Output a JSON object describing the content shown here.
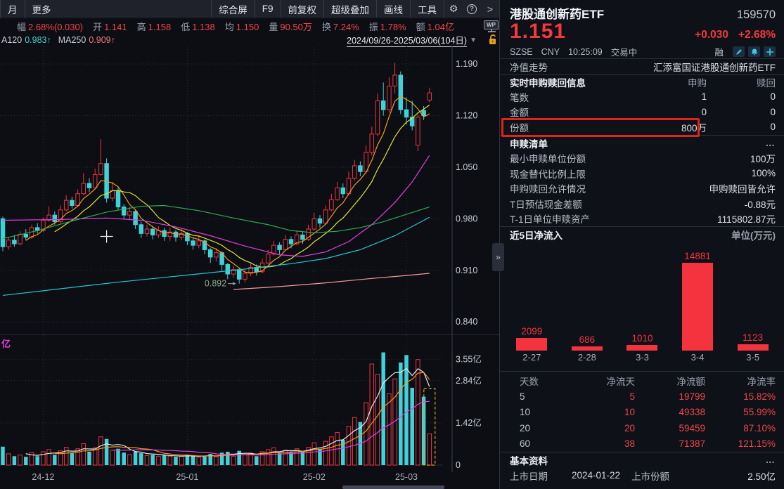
{
  "toolbar": {
    "tabs": [
      "月",
      "更多"
    ],
    "buttons": [
      "综合屏",
      "F9",
      "前复权",
      "超级叠加",
      "画线",
      "工具"
    ],
    "gear_icon": "⚙",
    "help_icon": "?",
    "chevron_icon": ">"
  },
  "info_row": {
    "items": [
      {
        "label": "幅",
        "value": "2.68%(0.030)"
      },
      {
        "label": "开",
        "value": "1.141"
      },
      {
        "label": "高",
        "value": "1.158"
      },
      {
        "label": "低",
        "value": "1.138"
      },
      {
        "label": "均",
        "value": "1.150"
      },
      {
        "label": "量",
        "value": "90.50万"
      },
      {
        "label": "换",
        "value": "7.24%"
      },
      {
        "label": "振",
        "value": "1.78%"
      },
      {
        "label": "额",
        "value": "1.04亿"
      }
    ],
    "wp_badge": "WP"
  },
  "ma_row": {
    "ma120_label": "A120",
    "ma120_value": "0.983↑",
    "ma250_label": "MA250",
    "ma250_value": "0.909↑",
    "date_range": "2024/09/26-2025/03/06(104日)",
    "dropdown": "▼"
  },
  "quote": {
    "name": "港股通创新药ETF",
    "code": "159570",
    "price": "1.151",
    "change": "+0.030",
    "change_pct": "+2.68%",
    "exchange": "SZSE",
    "currency": "CNY",
    "time": "10:25:09",
    "status": "交易中",
    "margin_tag": "融"
  },
  "nav_row": {
    "label": "净值走势",
    "value": "汇添富国证港股通创新药ETF"
  },
  "realtime": {
    "title": "实时申购赎回信息",
    "col_buy": "申购",
    "col_sell": "赎回",
    "rows": [
      {
        "label": "笔数",
        "buy": "1",
        "sell": "0"
      },
      {
        "label": "金额",
        "buy": "0",
        "sell": "0"
      },
      {
        "label": "份额",
        "buy": "800万",
        "sell": "0"
      }
    ]
  },
  "redemption": {
    "title": "申赎清单",
    "more": "…",
    "rows": [
      {
        "label": "最小申赎单位份额",
        "value": "100万"
      },
      {
        "label": "现金替代比例上限",
        "value": "100%"
      },
      {
        "label": "申购赎回允许情况",
        "value": "申购赎回皆允许"
      },
      {
        "label": "T日预估现金差额",
        "value": "-0.88元"
      },
      {
        "label": "T-1日单位申赎资产",
        "value": "1115802.87元"
      }
    ]
  },
  "flow_header": {
    "title": "近5日净流入",
    "unit": "单位(万元)"
  },
  "flow_table": {
    "headers": [
      "天数",
      "净流天",
      "净流额",
      "净流率"
    ],
    "rows": [
      [
        "5",
        "5",
        "19799",
        "15.82%"
      ],
      [
        "10",
        "10",
        "49338",
        "55.99%"
      ],
      [
        "20",
        "20",
        "59459",
        "87.10%"
      ],
      [
        "60",
        "38",
        "71387",
        "121.15%"
      ]
    ]
  },
  "basic": {
    "title": "基本资料",
    "more": "…",
    "label_date": "上市日期",
    "value_date": "2024-01-22",
    "label_shares": "上市份额",
    "value_shares": "2.50亿"
  },
  "expander": "»",
  "vol_pane_partial_label": "亿",
  "colors": {
    "up_red": "#f0353f",
    "down_cyan": "#3fd2d8",
    "accent_red": "#f0454a",
    "bar_red": "#f5333f",
    "highlight_box": "#e02418",
    "dashed_highlight": "#d9a31f",
    "ma5": "#f59a23",
    "ma10": "#e3e339",
    "ma20": "#e040e0",
    "ma60": "#2faa52",
    "ma120": "#27c5cf",
    "ma250": "#f59a9a",
    "vol_ma5": "#e8e8e8",
    "vol_ma10": "#f59a23",
    "vol_ma20": "#e040e0",
    "grid": "#2a303c",
    "axis_text": "#c7ccd6"
  },
  "chart_data": [
    {
      "type": "candlestick",
      "ylim": [
        0.823,
        1.214
      ],
      "y_ticks": [
        1.19,
        1.12,
        1.05,
        0.98,
        0.91,
        0.84
      ],
      "x_labels": [
        {
          "text": "24-12",
          "index": 7
        },
        {
          "text": "25-01",
          "index": 32
        },
        {
          "text": "25-02",
          "index": 54
        },
        {
          "text": "25-03",
          "index": 70
        }
      ],
      "low_marker": {
        "index": 41,
        "price": 0.892,
        "text": "0.892"
      },
      "crosshair": {
        "index": 18,
        "price": 0.956
      },
      "candles": [
        [
          0.98,
          0.983,
          0.936,
          0.942
        ],
        [
          0.942,
          0.955,
          0.938,
          0.951
        ],
        [
          0.951,
          0.958,
          0.942,
          0.946
        ],
        [
          0.946,
          0.963,
          0.944,
          0.959
        ],
        [
          0.959,
          0.966,
          0.951,
          0.955
        ],
        [
          0.955,
          0.972,
          0.953,
          0.968
        ],
        [
          0.968,
          0.974,
          0.96,
          0.964
        ],
        [
          0.964,
          0.982,
          0.962,
          0.978
        ],
        [
          0.978,
          0.997,
          0.976,
          0.985
        ],
        [
          0.985,
          0.99,
          0.972,
          0.976
        ],
        [
          0.976,
          0.998,
          0.974,
          0.992
        ],
        [
          0.992,
          1.012,
          0.99,
          1.005
        ],
        [
          1.005,
          1.01,
          0.994,
          0.998
        ],
        [
          0.998,
          1.02,
          0.996,
          1.014
        ],
        [
          1.014,
          1.042,
          1.012,
          1.028
        ],
        [
          1.028,
          1.035,
          1.016,
          1.022
        ],
        [
          1.022,
          1.048,
          1.02,
          1.04
        ],
        [
          1.04,
          1.088,
          1.038,
          1.055
        ],
        [
          1.055,
          1.062,
          1.002,
          1.008
        ],
        [
          1.008,
          1.03,
          1.004,
          1.018
        ],
        [
          1.018,
          1.022,
          0.992,
          0.996
        ],
        [
          0.996,
          1.0,
          0.98,
          0.985
        ],
        [
          0.985,
          0.996,
          0.978,
          0.99
        ],
        [
          0.99,
          0.992,
          0.966,
          0.972
        ],
        [
          0.972,
          0.976,
          0.954,
          0.96
        ],
        [
          0.96,
          0.972,
          0.956,
          0.966
        ],
        [
          0.966,
          0.97,
          0.952,
          0.958
        ],
        [
          0.958,
          0.97,
          0.954,
          0.964
        ],
        [
          0.964,
          0.968,
          0.95,
          0.956
        ],
        [
          0.956,
          0.968,
          0.95,
          0.962
        ],
        [
          0.962,
          0.965,
          0.949,
          0.955
        ],
        [
          0.955,
          0.966,
          0.951,
          0.96
        ],
        [
          0.96,
          0.962,
          0.944,
          0.95
        ],
        [
          0.95,
          0.954,
          0.938,
          0.944
        ],
        [
          0.944,
          0.956,
          0.94,
          0.95
        ],
        [
          0.95,
          0.952,
          0.932,
          0.938
        ],
        [
          0.938,
          0.94,
          0.92,
          0.928
        ],
        [
          0.928,
          0.94,
          0.922,
          0.934
        ],
        [
          0.934,
          0.936,
          0.91,
          0.918
        ],
        [
          0.918,
          0.92,
          0.898,
          0.905
        ],
        [
          0.905,
          0.916,
          0.9,
          0.911
        ],
        [
          0.911,
          0.913,
          0.892,
          0.898
        ],
        [
          0.898,
          0.912,
          0.894,
          0.906
        ],
        [
          0.906,
          0.92,
          0.902,
          0.914
        ],
        [
          0.914,
          0.918,
          0.903,
          0.908
        ],
        [
          0.908,
          0.926,
          0.906,
          0.92
        ],
        [
          0.92,
          0.938,
          0.918,
          0.932
        ],
        [
          0.932,
          0.95,
          0.93,
          0.944
        ],
        [
          0.944,
          0.948,
          0.932,
          0.938
        ],
        [
          0.938,
          0.958,
          0.936,
          0.952
        ],
        [
          0.952,
          0.956,
          0.94,
          0.946
        ],
        [
          0.946,
          0.964,
          0.944,
          0.958
        ],
        [
          0.958,
          0.962,
          0.946,
          0.952
        ],
        [
          0.952,
          0.972,
          0.95,
          0.966
        ],
        [
          0.966,
          0.988,
          0.964,
          0.98
        ],
        [
          0.98,
          0.985,
          0.968,
          0.974
        ],
        [
          0.974,
          0.998,
          0.972,
          0.992
        ],
        [
          0.992,
          1.014,
          0.99,
          1.006
        ],
        [
          1.006,
          1.03,
          1.004,
          1.022
        ],
        [
          1.022,
          1.028,
          1.008,
          1.014
        ],
        [
          1.014,
          1.044,
          1.012,
          1.035
        ],
        [
          1.035,
          1.06,
          1.032,
          1.052
        ],
        [
          1.052,
          1.058,
          1.038,
          1.044
        ],
        [
          1.044,
          1.08,
          1.042,
          1.07
        ],
        [
          1.07,
          1.105,
          1.066,
          1.095
        ],
        [
          1.095,
          1.15,
          1.092,
          1.14
        ],
        [
          1.14,
          1.165,
          1.12,
          1.128
        ],
        [
          1.128,
          1.172,
          1.124,
          1.16
        ],
        [
          1.16,
          1.192,
          1.15,
          1.175
        ],
        [
          1.175,
          1.18,
          1.122,
          1.128
        ],
        [
          1.128,
          1.145,
          1.108,
          1.118
        ],
        [
          1.118,
          1.14,
          1.1,
          1.106
        ],
        [
          1.08,
          1.122,
          1.072,
          1.118
        ],
        [
          1.127,
          1.133,
          1.114,
          1.12
        ],
        [
          1.141,
          1.158,
          1.138,
          1.151
        ]
      ],
      "overlays": [
        {
          "name": "MA5",
          "color_key": "ma5",
          "compute": 5
        },
        {
          "name": "MA10",
          "color_key": "ma10",
          "compute": 10
        },
        {
          "name": "MA20",
          "color_key": "ma20",
          "points": [
            [
              0,
              0.978
            ],
            [
              10,
              0.979
            ],
            [
              18,
              0.981
            ],
            [
              24,
              0.978
            ],
            [
              30,
              0.969
            ],
            [
              36,
              0.957
            ],
            [
              42,
              0.943
            ],
            [
              48,
              0.931
            ],
            [
              52,
              0.929
            ],
            [
              56,
              0.935
            ],
            [
              60,
              0.949
            ],
            [
              64,
              0.972
            ],
            [
              68,
              1.002
            ],
            [
              71,
              1.03
            ],
            [
              74,
              1.066
            ]
          ]
        },
        {
          "name": "MA60",
          "color_key": "ma60",
          "points": [
            [
              0,
              0.953
            ],
            [
              6,
              0.964
            ],
            [
              12,
              0.977
            ],
            [
              18,
              0.989
            ],
            [
              24,
              0.997
            ],
            [
              28,
              0.998
            ],
            [
              34,
              0.991
            ],
            [
              40,
              0.981
            ],
            [
              46,
              0.972
            ],
            [
              50,
              0.964
            ],
            [
              54,
              0.961
            ],
            [
              58,
              0.963
            ],
            [
              62,
              0.968
            ],
            [
              66,
              0.976
            ],
            [
              70,
              0.986
            ],
            [
              74,
              0.996
            ]
          ]
        },
        {
          "name": "MA120",
          "color_key": "ma120",
          "points": [
            [
              0,
              0.876
            ],
            [
              10,
              0.885
            ],
            [
              20,
              0.894
            ],
            [
              30,
              0.902
            ],
            [
              40,
              0.91
            ],
            [
              50,
              0.919
            ],
            [
              56,
              0.926
            ],
            [
              62,
              0.938
            ],
            [
              68,
              0.957
            ],
            [
              74,
              0.982
            ]
          ]
        },
        {
          "name": "MA250",
          "color_key": "ma250",
          "points": [
            [
              40,
              0.884
            ],
            [
              48,
              0.888
            ],
            [
              56,
              0.893
            ],
            [
              64,
              0.899
            ],
            [
              70,
              0.903
            ],
            [
              74,
              0.906
            ]
          ]
        }
      ]
    },
    {
      "type": "bar",
      "name": "volume",
      "ylim": [
        0,
        4.37
      ],
      "y_ticks": [
        {
          "v": 3.55,
          "label": "3.55亿"
        },
        {
          "v": 2.84,
          "label": "2.84亿"
        },
        {
          "v": 1.42,
          "label": "1.42亿"
        },
        {
          "v": 0,
          "label": "0"
        }
      ],
      "values": [
        0.62,
        0.38,
        0.3,
        0.34,
        0.28,
        0.42,
        0.3,
        0.45,
        0.52,
        0.35,
        0.48,
        0.6,
        0.4,
        0.55,
        0.72,
        0.45,
        0.58,
        0.95,
        0.88,
        0.5,
        0.55,
        0.42,
        0.35,
        0.45,
        0.4,
        0.32,
        0.35,
        0.3,
        0.33,
        0.3,
        0.28,
        0.3,
        0.35,
        0.3,
        0.26,
        0.32,
        0.38,
        0.28,
        0.42,
        0.45,
        0.3,
        0.48,
        0.35,
        0.4,
        0.3,
        0.45,
        0.52,
        0.58,
        0.4,
        0.5,
        0.42,
        0.55,
        0.45,
        0.6,
        0.75,
        0.55,
        0.8,
        0.95,
        1.1,
        0.85,
        1.3,
        1.6,
        1.45,
        2.1,
        3.4,
        3.05,
        3.79,
        2.4,
        2.9,
        3.45,
        3.7,
        2.6,
        3.55,
        2.3,
        1.05
      ],
      "highlight_last": true
    },
    {
      "type": "bar",
      "name": "net_inflow_5d",
      "title": "近5日净流入",
      "unit": "单位(万元)",
      "categories": [
        "2-27",
        "2-28",
        "3-3",
        "3-4",
        "3-5"
      ],
      "values": [
        2099,
        686,
        1010,
        14881,
        1123
      ]
    }
  ]
}
